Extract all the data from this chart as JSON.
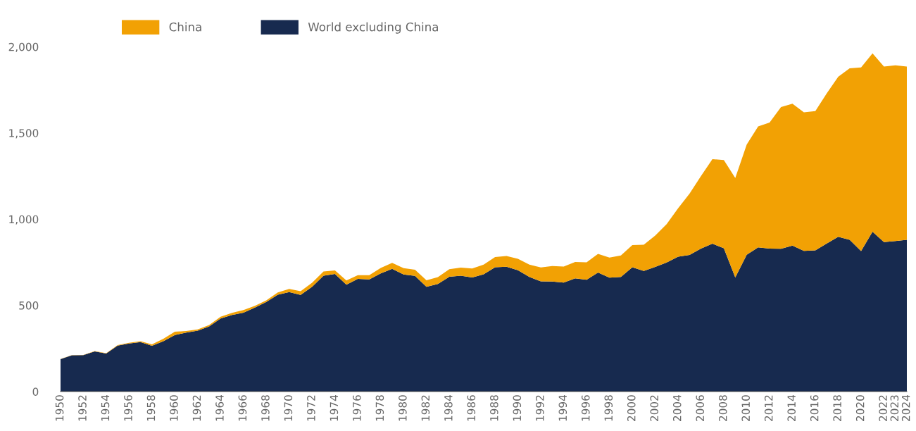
{
  "chart_data": {
    "type": "area",
    "stacked": true,
    "categories": [
      "1950",
      null,
      "1952",
      null,
      "1954",
      null,
      "1956",
      null,
      "1958",
      null,
      "1960",
      null,
      "1962",
      null,
      "1964",
      null,
      "1966",
      null,
      "1968",
      null,
      "1970",
      null,
      "1972",
      null,
      "1974",
      null,
      "1976",
      null,
      "1978",
      null,
      "1980",
      null,
      "1982",
      null,
      "1984",
      null,
      "1986",
      null,
      "1988",
      null,
      "1990",
      null,
      "1992",
      null,
      "1994",
      null,
      "1996",
      null,
      "1998",
      null,
      "2000",
      null,
      "2002",
      null,
      "2004",
      null,
      "2006",
      null,
      "2008",
      null,
      "2010",
      null,
      "2012",
      null,
      "2014",
      null,
      "2016",
      null,
      "2018",
      null,
      "2020",
      null,
      "2022",
      "2023",
      "2024"
    ],
    "series": [
      {
        "name": "World excluding China",
        "color": "#172a4f",
        "values": [
          188,
          210,
          211,
          233,
          221,
          267,
          279,
          287,
          266,
          292,
          328,
          342,
          353,
          378,
          424,
          444,
          458,
          487,
          520,
          562,
          577,
          561,
          608,
          672,
          682,
          620,
          654,
          651,
          685,
          712,
          679,
          671,
          608,
          624,
          666,
          672,
          662,
          680,
          721,
          724,
          704,
          665,
          639,
          638,
          632,
          657,
          649,
          690,
          661,
          665,
          721,
          700,
          723,
          749,
          782,
          792,
          829,
          858,
          831,
          662,
          794,
          836,
          829,
          828,
          847,
          816,
          819,
          859,
          898,
          880,
          815,
          927,
          867,
          873,
          880
        ]
      },
      {
        "name": "China",
        "color": "#f2a104",
        "values": [
          1,
          1,
          1,
          2,
          2,
          3,
          4,
          5,
          8,
          14,
          19,
          9,
          7,
          8,
          10,
          12,
          15,
          10,
          9,
          13,
          18,
          21,
          23,
          25,
          21,
          24,
          21,
          24,
          32,
          35,
          37,
          36,
          37,
          40,
          44,
          47,
          52,
          56,
          59,
          62,
          66,
          71,
          81,
          90,
          93,
          95,
          101,
          109,
          116,
          124,
          129,
          152,
          182,
          222,
          281,
          356,
          421,
          490,
          512,
          577,
          639,
          702,
          731,
          822,
          823,
          804,
          808,
          871,
          928,
          995,
          1065,
          1035,
          1018,
          1019,
          1005
        ]
      }
    ],
    "ylim": [
      0,
      2000
    ],
    "yticks": [
      {
        "value": 0,
        "label": "0"
      },
      {
        "value": 500,
        "label": "500"
      },
      {
        "value": 1000,
        "label": "1,000"
      },
      {
        "value": 1500,
        "label": "1,500"
      },
      {
        "value": 2000,
        "label": "2,000"
      }
    ],
    "legend": "top left",
    "grid": false
  }
}
